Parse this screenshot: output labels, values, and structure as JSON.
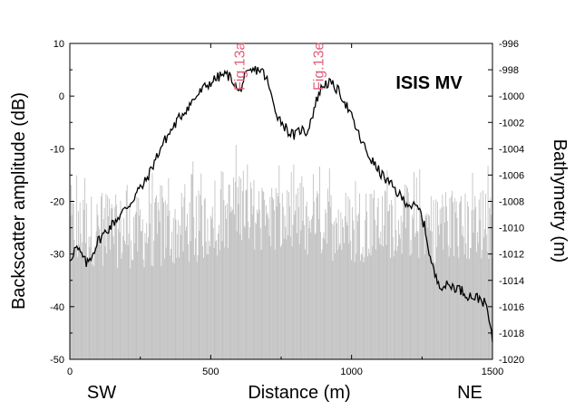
{
  "chart_data": {
    "type": "line",
    "title": "ISIS MV",
    "xlabel": "Distance (m)",
    "ylabel": "Backscatter amplitude (dB)",
    "y2label": "Bathymetry (m)",
    "xlim": [
      0,
      1500
    ],
    "ylim": [
      -50,
      10
    ],
    "y2lim": [
      -1020,
      -996
    ],
    "x_ticks": [
      "0",
      "500",
      "1000",
      "1500"
    ],
    "y_ticks": [
      "-50",
      "-40",
      "-30",
      "-20",
      "-10",
      "0",
      "10"
    ],
    "y2_ticks": [
      "-1020",
      "-1018",
      "-1016",
      "-1014",
      "-1012",
      "-1010",
      "-1008",
      "-1006",
      "-1004",
      "-1002",
      "-1000",
      "-998",
      "-996"
    ],
    "direction_left": "SW",
    "direction_right": "NE",
    "annotations": [
      {
        "text": "Fig.13a",
        "x": 600
      },
      {
        "text": "Fig.13e",
        "x": 880
      }
    ],
    "series": [
      {
        "axis": "right",
        "style": "line",
        "color": "#000000",
        "x": [
          0,
          20,
          40,
          60,
          80,
          100,
          120,
          140,
          160,
          180,
          200,
          220,
          240,
          260,
          280,
          300,
          330,
          360,
          390,
          420,
          450,
          480,
          510,
          540,
          560,
          580,
          600,
          620,
          640,
          660,
          680,
          700,
          720,
          740,
          760,
          780,
          800,
          820,
          840,
          860,
          880,
          900,
          920,
          940,
          960,
          980,
          1000,
          1030,
          1060,
          1090,
          1120,
          1150,
          1180,
          1210,
          1240,
          1260,
          1280,
          1300,
          1320,
          1350,
          1380,
          1410,
          1440,
          1460,
          1480,
          1500
        ],
        "y": [
          -1012.5,
          -1011.5,
          -1012.0,
          -1012.8,
          -1012.0,
          -1011.0,
          -1010.5,
          -1010.0,
          -1009.5,
          -1009.0,
          -1008.5,
          -1008.0,
          -1007.2,
          -1006.8,
          -1006.0,
          -1005.0,
          -1003.6,
          -1002.6,
          -1001.6,
          -1000.8,
          -1000.0,
          -999.3,
          -998.8,
          -998.4,
          -998.4,
          -998.8,
          -999.8,
          -998.6,
          -998.2,
          -998.0,
          -998.0,
          -998.8,
          -1000.4,
          -1001.6,
          -1002.2,
          -1002.8,
          -1003.0,
          -1002.5,
          -1002.8,
          -1001.5,
          -1000.0,
          -999.1,
          -999.0,
          -999.3,
          -999.8,
          -1000.6,
          -1001.6,
          -1003.2,
          -1004.5,
          -1005.5,
          -1006.3,
          -1007.0,
          -1007.8,
          -1008.3,
          -1008.6,
          -1010.0,
          -1012.4,
          -1013.9,
          -1014.4,
          -1014.4,
          -1014.6,
          -1015.1,
          -1015.3,
          -1015.4,
          -1016.0,
          -1018.7
        ]
      },
      {
        "axis": "left",
        "style": "dense-bars",
        "color": "#c2c2c2",
        "base": -50,
        "samples": 520,
        "envelope": {
          "x": [
            0,
            250,
            450,
            550,
            600,
            650,
            700,
            800,
            900,
            1000,
            1100,
            1200,
            1300,
            1400,
            1500
          ],
          "mean": [
            -25,
            -26,
            -25,
            -23,
            -20,
            -22,
            -24,
            -24,
            -24,
            -25,
            -24,
            -24,
            -25,
            -25,
            -25
          ],
          "max": [
            -13,
            -15,
            -12,
            -12,
            -8,
            -12,
            -14,
            -12,
            -12,
            -13,
            -12,
            -13,
            -14,
            -14,
            -12
          ]
        }
      }
    ]
  }
}
